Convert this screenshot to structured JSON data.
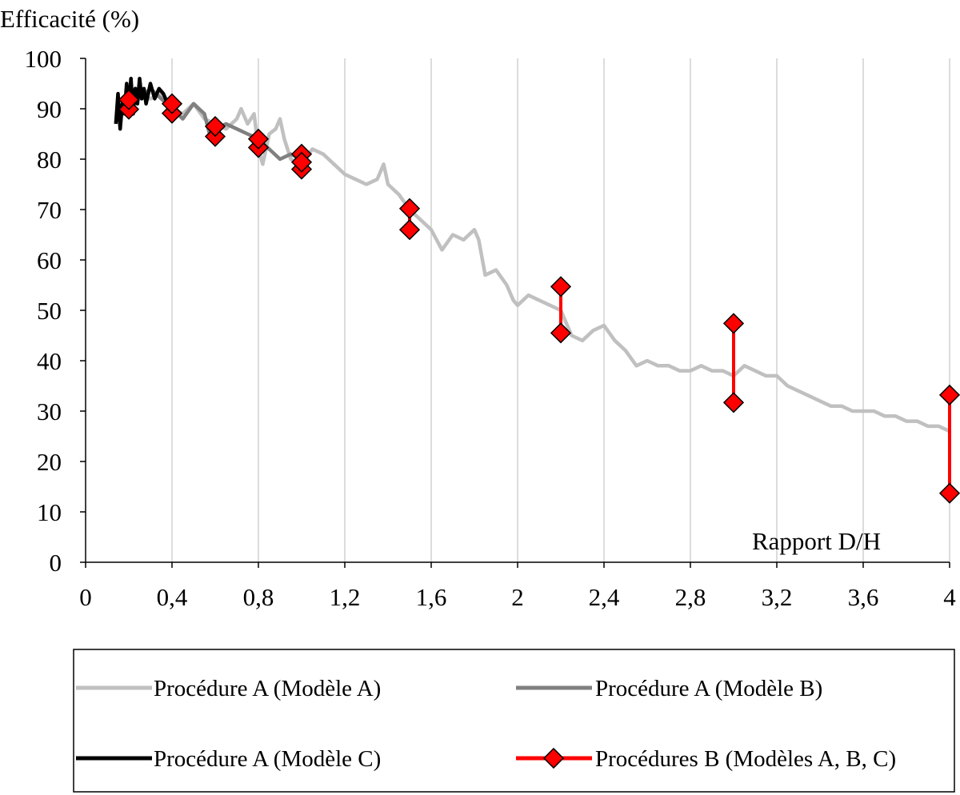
{
  "chart_data": {
    "type": "line",
    "ylabel": "Efficacité (%)",
    "xlabel": "Rapport D/H",
    "xlim": [
      0,
      4
    ],
    "ylim": [
      0,
      100
    ],
    "x_ticks": [
      "0",
      "0,4",
      "0,8",
      "1,2",
      "1,6",
      "2",
      "2,4",
      "2,8",
      "3,2",
      "3,6",
      "4"
    ],
    "y_ticks": [
      "0",
      "10",
      "20",
      "30",
      "40",
      "50",
      "60",
      "70",
      "80",
      "90",
      "100"
    ],
    "x_tick_values": [
      0,
      0.4,
      0.8,
      1.2,
      1.6,
      2.0,
      2.4,
      2.8,
      3.2,
      3.6,
      4.0
    ],
    "y_tick_values": [
      0,
      10,
      20,
      30,
      40,
      50,
      60,
      70,
      80,
      90,
      100
    ],
    "grid": "vertical",
    "legend_position": "bottom",
    "series": [
      {
        "name": "Procédure A (Modèle A)",
        "color": "#c0c0c0",
        "style": "line",
        "points": [
          [
            0.15,
            89
          ],
          [
            0.2,
            92
          ],
          [
            0.25,
            93
          ],
          [
            0.3,
            92
          ],
          [
            0.35,
            93
          ],
          [
            0.4,
            90
          ],
          [
            0.45,
            89
          ],
          [
            0.5,
            91
          ],
          [
            0.55,
            88
          ],
          [
            0.6,
            87
          ],
          [
            0.65,
            86
          ],
          [
            0.7,
            88
          ],
          [
            0.72,
            90
          ],
          [
            0.75,
            87
          ],
          [
            0.78,
            89
          ],
          [
            0.8,
            82
          ],
          [
            0.82,
            79
          ],
          [
            0.85,
            85
          ],
          [
            0.88,
            86
          ],
          [
            0.9,
            88
          ],
          [
            0.92,
            84
          ],
          [
            0.95,
            80
          ],
          [
            1.0,
            79
          ],
          [
            1.05,
            82
          ],
          [
            1.1,
            81
          ],
          [
            1.15,
            79
          ],
          [
            1.2,
            77
          ],
          [
            1.25,
            76
          ],
          [
            1.3,
            75
          ],
          [
            1.35,
            76
          ],
          [
            1.38,
            79
          ],
          [
            1.4,
            75
          ],
          [
            1.45,
            73
          ],
          [
            1.5,
            70
          ],
          [
            1.55,
            68
          ],
          [
            1.6,
            66
          ],
          [
            1.65,
            62
          ],
          [
            1.7,
            65
          ],
          [
            1.75,
            64
          ],
          [
            1.8,
            66
          ],
          [
            1.82,
            64
          ],
          [
            1.85,
            57
          ],
          [
            1.9,
            58
          ],
          [
            1.95,
            55
          ],
          [
            1.98,
            52
          ],
          [
            2.0,
            51
          ],
          [
            2.05,
            53
          ],
          [
            2.1,
            52
          ],
          [
            2.15,
            51
          ],
          [
            2.2,
            50
          ],
          [
            2.25,
            45
          ],
          [
            2.3,
            44
          ],
          [
            2.35,
            46
          ],
          [
            2.4,
            47
          ],
          [
            2.45,
            44
          ],
          [
            2.5,
            42
          ],
          [
            2.55,
            39
          ],
          [
            2.6,
            40
          ],
          [
            2.65,
            39
          ],
          [
            2.7,
            39
          ],
          [
            2.75,
            38
          ],
          [
            2.8,
            38
          ],
          [
            2.85,
            39
          ],
          [
            2.9,
            38
          ],
          [
            2.95,
            38
          ],
          [
            3.0,
            37
          ],
          [
            3.05,
            39
          ],
          [
            3.1,
            38
          ],
          [
            3.15,
            37
          ],
          [
            3.2,
            37
          ],
          [
            3.25,
            35
          ],
          [
            3.3,
            34
          ],
          [
            3.35,
            33
          ],
          [
            3.4,
            32
          ],
          [
            3.45,
            31
          ],
          [
            3.5,
            31
          ],
          [
            3.55,
            30
          ],
          [
            3.6,
            30
          ],
          [
            3.65,
            30
          ],
          [
            3.7,
            29
          ],
          [
            3.75,
            29
          ],
          [
            3.8,
            28
          ],
          [
            3.85,
            28
          ],
          [
            3.9,
            27
          ],
          [
            3.95,
            27
          ],
          [
            4.0,
            26
          ]
        ]
      },
      {
        "name": "Procédure A (Modèle B)",
        "color": "#808080",
        "style": "line",
        "points": [
          [
            0.15,
            89
          ],
          [
            0.2,
            93
          ],
          [
            0.25,
            92
          ],
          [
            0.3,
            94
          ],
          [
            0.35,
            92
          ],
          [
            0.4,
            90
          ],
          [
            0.45,
            88
          ],
          [
            0.5,
            91
          ],
          [
            0.55,
            89
          ],
          [
            0.58,
            84
          ],
          [
            0.6,
            86
          ],
          [
            0.65,
            87
          ],
          [
            0.7,
            86
          ],
          [
            0.75,
            85
          ],
          [
            0.8,
            84
          ],
          [
            0.85,
            82
          ],
          [
            0.9,
            80
          ],
          [
            0.95,
            81
          ],
          [
            1.0,
            80
          ]
        ]
      },
      {
        "name": "Procédure A (Modèle C)",
        "color": "#000000",
        "style": "line",
        "points": [
          [
            0.14,
            87
          ],
          [
            0.15,
            93
          ],
          [
            0.16,
            86
          ],
          [
            0.17,
            91
          ],
          [
            0.18,
            89
          ],
          [
            0.19,
            95
          ],
          [
            0.2,
            90
          ],
          [
            0.21,
            96
          ],
          [
            0.22,
            89
          ],
          [
            0.23,
            94
          ],
          [
            0.24,
            91
          ],
          [
            0.25,
            96
          ],
          [
            0.26,
            92
          ],
          [
            0.27,
            94
          ],
          [
            0.28,
            91
          ],
          [
            0.3,
            95
          ],
          [
            0.32,
            92
          ],
          [
            0.34,
            94
          ],
          [
            0.36,
            93
          ],
          [
            0.38,
            91
          ],
          [
            0.4,
            90
          ]
        ]
      },
      {
        "name": "Procédures B (Modèles A, B, C)",
        "color": "#ff0000",
        "style": "range",
        "ranges": [
          [
            0.2,
            89.9,
            91.8
          ],
          [
            0.4,
            89.1,
            91.0
          ],
          [
            0.6,
            84.5,
            86.5
          ],
          [
            0.8,
            82.3,
            84.0
          ],
          [
            1.0,
            78.0,
            81.0
          ],
          [
            1.5,
            66.0,
            70.2
          ],
          [
            2.2,
            45.5,
            54.7
          ],
          [
            3.0,
            31.7,
            47.4
          ],
          [
            4.0,
            13.7,
            33.2
          ]
        ],
        "markers": [
          [
            1.0,
            79.4
          ]
        ]
      }
    ]
  }
}
